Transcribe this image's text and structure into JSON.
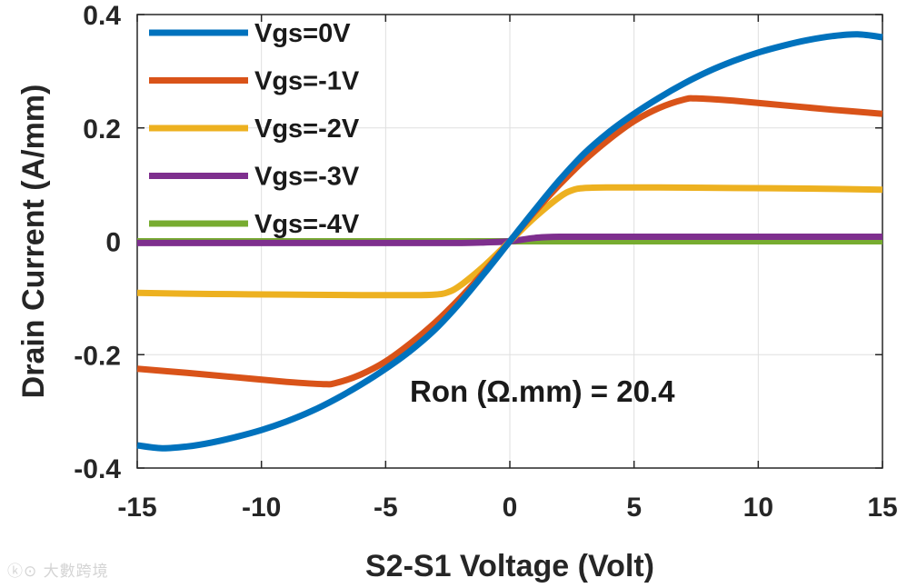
{
  "chart_data": {
    "type": "line",
    "title": "",
    "xlabel": "S2-S1 Voltage (Volt)",
    "ylabel": "Drain Current (A/mm)",
    "xlim": [
      -15,
      15
    ],
    "ylim": [
      -0.4,
      0.4
    ],
    "xticks": [
      -15,
      -10,
      -5,
      0,
      5,
      10,
      15
    ],
    "xtick_labels": [
      "-15",
      "-10",
      "-5",
      "0",
      "5",
      "10",
      "15"
    ],
    "yticks": [
      -0.4,
      -0.2,
      0,
      0.2,
      0.4
    ],
    "ytick_labels": [
      "-0.4",
      "-0.2",
      "0",
      "0.2",
      "0.4"
    ],
    "grid": true,
    "legend_position": "top-left",
    "annotation": "Ron (Ω.mm) = 20.4",
    "series": [
      {
        "name": "Vgs=0V",
        "color": "#0072BD",
        "x": [
          -15,
          -14,
          -13,
          -12,
          -11,
          -10,
          -9,
          -8,
          -7,
          -6,
          -5,
          -4,
          -3,
          -2,
          -1,
          0,
          1,
          2,
          3,
          4,
          5,
          6,
          7,
          8,
          9,
          10,
          11,
          12,
          13,
          14,
          15
        ],
        "y": [
          -0.36,
          -0.365,
          -0.362,
          -0.355,
          -0.345,
          -0.333,
          -0.318,
          -0.3,
          -0.278,
          -0.253,
          -0.225,
          -0.193,
          -0.155,
          -0.108,
          -0.055,
          0,
          0.055,
          0.108,
          0.155,
          0.193,
          0.225,
          0.253,
          0.278,
          0.3,
          0.318,
          0.333,
          0.345,
          0.355,
          0.362,
          0.365,
          0.36
        ]
      },
      {
        "name": "Vgs=-1V",
        "color": "#D95319",
        "x": [
          -15,
          -13,
          -11,
          -9,
          -7.5,
          -7,
          -6,
          -5,
          -4,
          -3,
          -2,
          -1,
          0,
          1,
          2,
          3,
          4,
          5,
          6,
          7,
          7.5,
          9,
          11,
          13,
          15
        ],
        "y": [
          -0.225,
          -0.232,
          -0.24,
          -0.248,
          -0.252,
          -0.25,
          -0.235,
          -0.212,
          -0.18,
          -0.143,
          -0.1,
          -0.052,
          0,
          0.052,
          0.1,
          0.143,
          0.18,
          0.212,
          0.235,
          0.25,
          0.252,
          0.248,
          0.24,
          0.232,
          0.225
        ]
      },
      {
        "name": "Vgs=-2V",
        "color": "#EDB120",
        "x": [
          -15,
          -12,
          -9,
          -6,
          -4,
          -3,
          -2.5,
          -2,
          -1,
          0,
          1,
          2,
          2.5,
          3,
          4,
          6,
          9,
          12,
          15
        ],
        "y": [
          -0.091,
          -0.093,
          -0.094,
          -0.095,
          -0.095,
          -0.094,
          -0.09,
          -0.078,
          -0.042,
          0,
          0.042,
          0.078,
          0.09,
          0.094,
          0.095,
          0.095,
          0.094,
          0.093,
          0.091
        ]
      },
      {
        "name": "Vgs=-3V",
        "color": "#7E2F8E",
        "x": [
          -15,
          -10,
          -5,
          -2,
          -1,
          0,
          1,
          2,
          5,
          10,
          15
        ],
        "y": [
          -0.003,
          -0.003,
          -0.003,
          -0.003,
          -0.002,
          0,
          0.006,
          0.008,
          0.008,
          0.008,
          0.008
        ]
      },
      {
        "name": "Vgs=-4V",
        "color": "#77AC30",
        "x": [
          -15,
          15
        ],
        "y": [
          0,
          0
        ]
      }
    ]
  },
  "watermark": "大數跨境"
}
